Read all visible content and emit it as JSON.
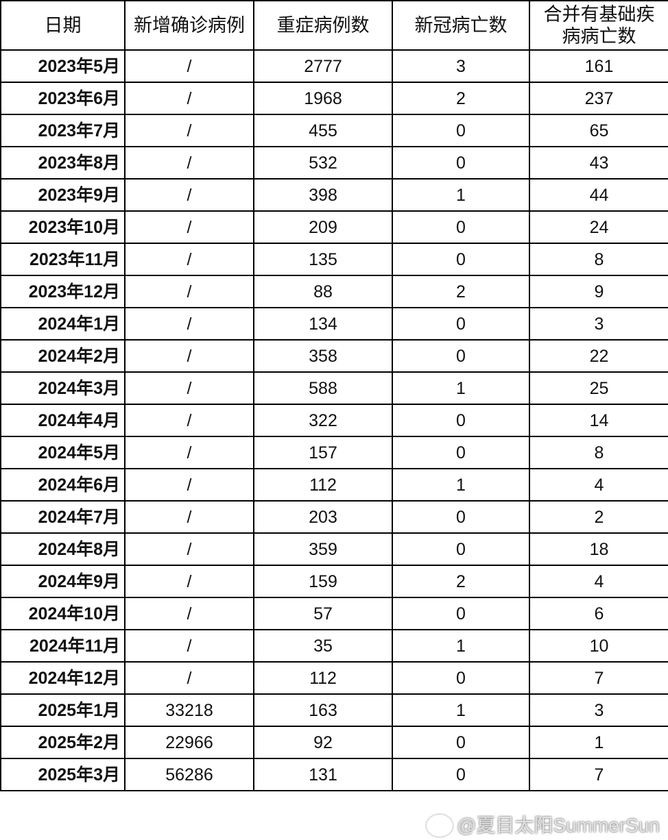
{
  "headers": [
    "日期",
    "新增确诊病例",
    "重症病例数",
    "新冠病亡数",
    "合并有基础疾病病亡数"
  ],
  "header_last_lines": [
    "合并有基础疾",
    "病病亡数"
  ],
  "rows": [
    [
      "2023年5月",
      "/",
      "2777",
      "3",
      "161"
    ],
    [
      "2023年6月",
      "/",
      "1968",
      "2",
      "237"
    ],
    [
      "2023年7月",
      "/",
      "455",
      "0",
      "65"
    ],
    [
      "2023年8月",
      "/",
      "532",
      "0",
      "43"
    ],
    [
      "2023年9月",
      "/",
      "398",
      "1",
      "44"
    ],
    [
      "2023年10月",
      "/",
      "209",
      "0",
      "24"
    ],
    [
      "2023年11月",
      "/",
      "135",
      "0",
      "8"
    ],
    [
      "2023年12月",
      "/",
      "88",
      "2",
      "9"
    ],
    [
      "2024年1月",
      "/",
      "134",
      "0",
      "3"
    ],
    [
      "2024年2月",
      "/",
      "358",
      "0",
      "22"
    ],
    [
      "2024年3月",
      "/",
      "588",
      "1",
      "25"
    ],
    [
      "2024年4月",
      "/",
      "322",
      "0",
      "14"
    ],
    [
      "2024年5月",
      "/",
      "157",
      "0",
      "8"
    ],
    [
      "2024年6月",
      "/",
      "112",
      "1",
      "4"
    ],
    [
      "2024年7月",
      "/",
      "203",
      "0",
      "2"
    ],
    [
      "2024年8月",
      "/",
      "359",
      "0",
      "18"
    ],
    [
      "2024年9月",
      "/",
      "159",
      "2",
      "4"
    ],
    [
      "2024年10月",
      "/",
      "57",
      "0",
      "6"
    ],
    [
      "2024年11月",
      "/",
      "35",
      "1",
      "10"
    ],
    [
      "2024年12月",
      "/",
      "112",
      "0",
      "7"
    ],
    [
      "2025年1月",
      "33218",
      "163",
      "1",
      "3"
    ],
    [
      "2025年2月",
      "22966",
      "92",
      "0",
      "1"
    ],
    [
      "2025年3月",
      "56286",
      "131",
      "0",
      "7"
    ]
  ],
  "watermark": "@夏目太阳SummerSun"
}
